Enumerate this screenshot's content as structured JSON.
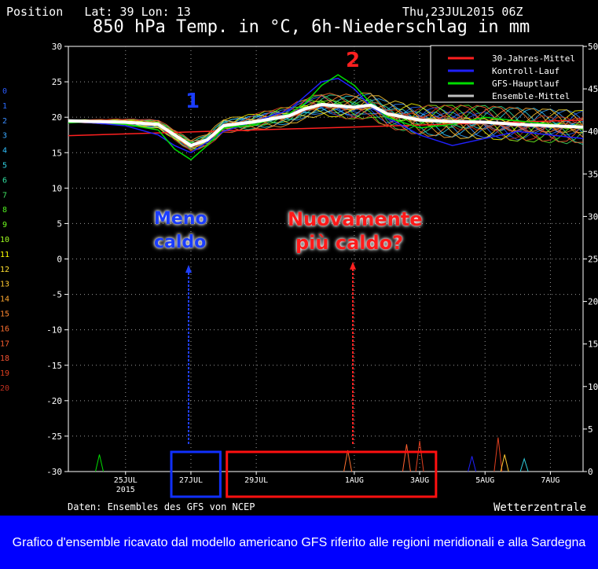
{
  "header": {
    "position": "Position   Lat: 39 Lon: 13",
    "datetime": "Thu,23JUL2015 06Z",
    "title": "850 hPa Temp. in °C, 6h-Niederschlag in mm"
  },
  "footer": {
    "source": "Daten: Ensembles des GFS von NCEP",
    "brand": "Wetterzentrale"
  },
  "caption": "Grafico d'ensemble ricavato dal modello americano GFS riferito alle regioni meridionali e alla Sardegna",
  "annotations": {
    "marker1": "1",
    "marker2": "2",
    "text_blue_line1": "Meno",
    "text_blue_line2": "caldo",
    "text_red_line1": "Nuovamente",
    "text_red_line2": "più caldo?"
  },
  "chart_data": {
    "type": "line",
    "x_tick_labels": [
      {
        "label": "25JUL",
        "sub": "2015",
        "day": 25
      },
      {
        "label": "27JUL",
        "sub": "",
        "day": 27
      },
      {
        "label": "29JUL",
        "sub": "",
        "day": 29
      },
      {
        "label": "1AUG",
        "sub": "",
        "day": 32
      },
      {
        "label": "3AUG",
        "sub": "",
        "day": 34
      },
      {
        "label": "5AUG",
        "sub": "",
        "day": 36
      },
      {
        "label": "7AUG",
        "sub": "",
        "day": 38
      }
    ],
    "x_range_days": [
      23.25,
      39.0
    ],
    "y_left": {
      "min": -30,
      "max": 30,
      "ticks": [
        30,
        25,
        20,
        15,
        10,
        5,
        0,
        -5,
        -10,
        -15,
        -20,
        -25,
        -30
      ]
    },
    "y_right": {
      "min": 0,
      "max": 50,
      "ticks": [
        50,
        45,
        40,
        35,
        30,
        25,
        20,
        15,
        10,
        5,
        0
      ]
    },
    "member_labels": [
      "0",
      "1",
      "2",
      "3",
      "4",
      "5",
      "6",
      "7",
      "8",
      "9",
      "10",
      "11",
      "12",
      "13",
      "14",
      "15",
      "16",
      "17",
      "18",
      "19",
      "20"
    ],
    "member_colors": [
      "#2a5cff",
      "#2a6cff",
      "#3a8cff",
      "#3aa8ff",
      "#30c0ff",
      "#30d0e0",
      "#30e0a0",
      "#40e060",
      "#50f020",
      "#70ff20",
      "#a0ff20",
      "#ffff00",
      "#ffe030",
      "#ffc830",
      "#ffa830",
      "#ff8830",
      "#ff7030",
      "#ff6030",
      "#f05030",
      "#e04020",
      "#c03020"
    ],
    "legend": [
      {
        "name": "30-Jahres-Mittel",
        "color": "#ff2020"
      },
      {
        "name": "Kontroll-Lauf",
        "color": "#2020ff"
      },
      {
        "name": "GFS-Hauptlauf",
        "color": "#00dd00"
      },
      {
        "name": "Ensemble-Mittel",
        "color": "#c0c0c0"
      }
    ],
    "series": [
      {
        "name": "30-Jahres-Mittel",
        "x": [
          23.25,
          39.0
        ],
        "y": [
          17.4,
          19.6
        ]
      },
      {
        "name": "Ensemble-Mittel",
        "x": [
          23.25,
          24,
          25,
          26,
          26.5,
          27,
          27.5,
          28,
          29,
          30,
          30.5,
          31,
          31.5,
          32,
          32.5,
          33,
          34,
          35,
          36,
          37,
          38,
          39
        ],
        "y": [
          19.5,
          19.4,
          19.3,
          19.0,
          17.5,
          16.0,
          16.8,
          18.8,
          19.4,
          20.2,
          21.2,
          21.8,
          21.6,
          21.4,
          21.7,
          20.5,
          19.6,
          19.4,
          19.3,
          19.0,
          18.8,
          18.6
        ]
      },
      {
        "name": "GFS-Hauptlauf",
        "x": [
          23.25,
          24,
          25,
          26,
          26.5,
          27,
          27.5,
          28,
          29,
          30,
          30.5,
          31,
          31.5,
          32,
          32.5,
          33,
          34,
          35,
          36,
          37,
          38,
          39
        ],
        "y": [
          19.2,
          19.4,
          19.0,
          18.2,
          15.5,
          14.0,
          16.0,
          18.5,
          19.0,
          20.5,
          22.0,
          24.5,
          26.0,
          24.5,
          22.0,
          20.0,
          18.5,
          19.0,
          20.0,
          19.5,
          19.0,
          18.4
        ]
      },
      {
        "name": "Kontroll-Lauf",
        "x": [
          23.25,
          24,
          25,
          26,
          26.5,
          27,
          27.5,
          28,
          29,
          30,
          30.5,
          31,
          31.5,
          32,
          32.5,
          33,
          34,
          35,
          36,
          37,
          38,
          39
        ],
        "y": [
          19.4,
          19.2,
          18.8,
          17.5,
          16.0,
          15.0,
          16.5,
          18.0,
          19.5,
          21.0,
          23.0,
          25.0,
          25.5,
          24.0,
          21.5,
          20.0,
          17.5,
          16.0,
          17.0,
          18.0,
          17.5,
          17.0
        ]
      }
    ],
    "precip_peaks": [
      {
        "day": 24.2,
        "mm": 2.0,
        "color": "#00dd00"
      },
      {
        "day": 31.8,
        "mm": 2.5,
        "color": "#ff7030"
      },
      {
        "day": 33.6,
        "mm": 3.2,
        "color": "#ff6030"
      },
      {
        "day": 34.0,
        "mm": 3.6,
        "color": "#e04020"
      },
      {
        "day": 35.6,
        "mm": 1.8,
        "color": "#2020ff"
      },
      {
        "day": 36.4,
        "mm": 4.0,
        "color": "#e04020"
      },
      {
        "day": 36.6,
        "mm": 2.0,
        "color": "#ffc830"
      },
      {
        "day": 37.2,
        "mm": 1.5,
        "color": "#30d0e0"
      }
    ],
    "highlight_boxes": [
      {
        "label": "blue",
        "from_day": 26.4,
        "to_day": 27.9,
        "color": "#1030ff"
      },
      {
        "label": "red",
        "from_day": 28.1,
        "to_day": 34.5,
        "color": "#ff1010"
      }
    ]
  }
}
